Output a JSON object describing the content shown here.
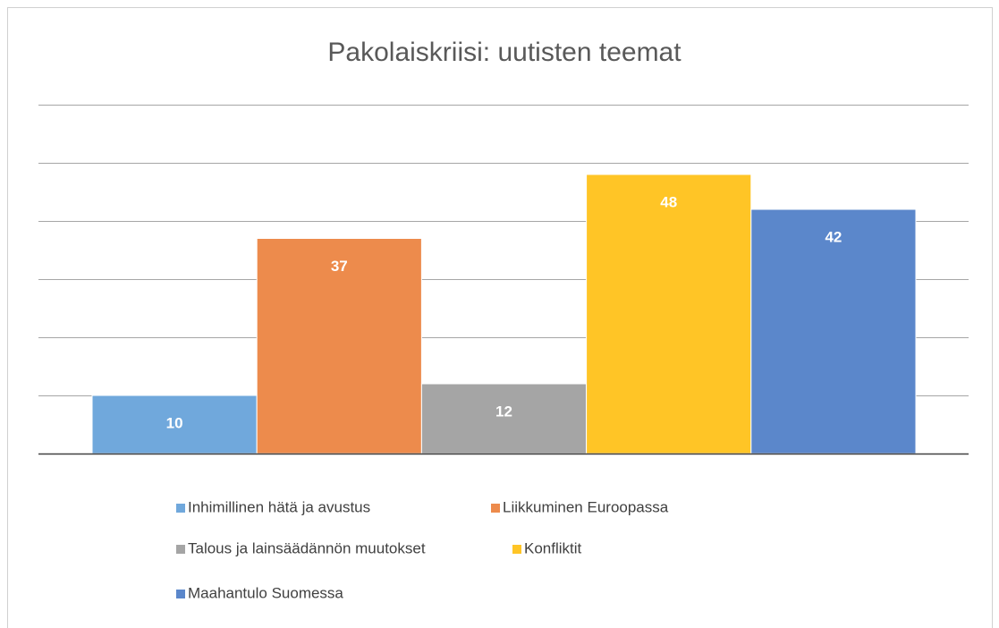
{
  "chart_data": {
    "type": "bar",
    "title": "Pakolaiskriisi: uutisten teemat",
    "series": [
      {
        "name": "Inhimillinen hätä ja avustus",
        "color": "#70a8dc",
        "values": [
          10
        ]
      },
      {
        "name": "Liikkuminen Euroopassa",
        "color": "#ed8b4c",
        "values": [
          37
        ]
      },
      {
        "name": "Talous ja lainsäädännön muutokset",
        "color": "#a5a5a5",
        "values": [
          12
        ]
      },
      {
        "name": "Konfliktit",
        "color": "#ffc526",
        "values": [
          48
        ]
      },
      {
        "name": "Maahantulo Suomessa",
        "color": "#5b87cb",
        "values": [
          42
        ]
      }
    ],
    "ylim": [
      0,
      60
    ],
    "yticks": [
      0,
      10,
      20,
      30,
      40,
      50,
      60
    ],
    "grid": true
  }
}
